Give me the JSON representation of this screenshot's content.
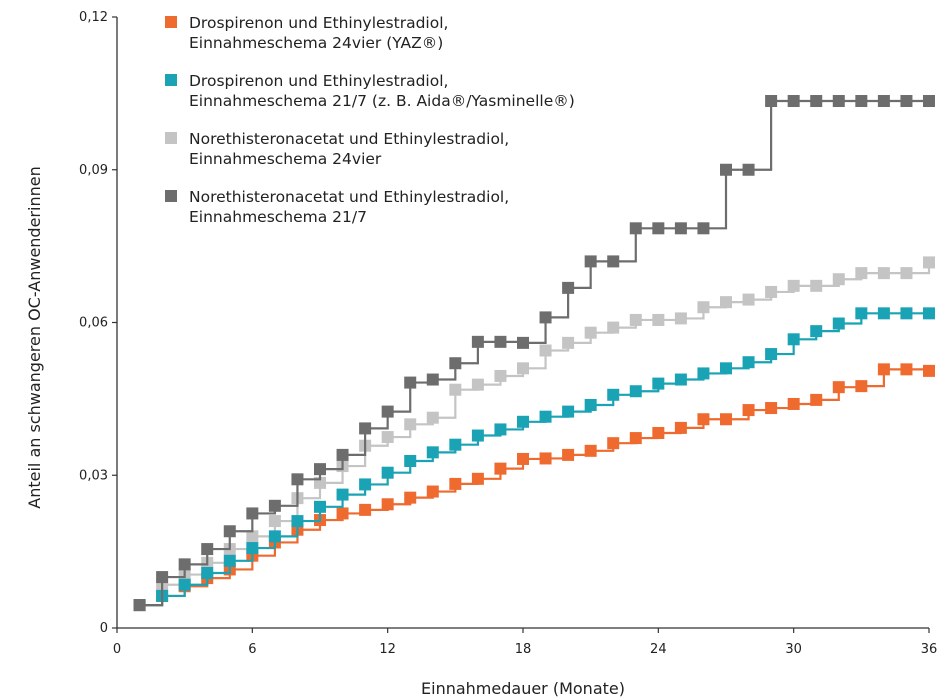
{
  "chart_data": {
    "type": "line",
    "title": "",
    "xlabel": "Einnahmedauer (Monate)",
    "ylabel": "Anteil an schwangeren OC-Anwenderinnen",
    "xlim": [
      0,
      36
    ],
    "ylim": [
      0,
      0.12
    ],
    "x_ticks": [
      "0",
      "6",
      "12",
      "18",
      "24",
      "30",
      "36"
    ],
    "y_ticks": [
      "0",
      "0,03",
      "0,06",
      "0,09",
      "0,12"
    ],
    "grid": false,
    "legend_position": "top-left",
    "series": [
      {
        "name_lines": [
          "Drospirenon und Ethinylestradiol,",
          "Einnahmeschema 24vier (YAZ®)"
        ],
        "color": "#ee6a2e",
        "x": [
          1,
          2,
          3,
          4,
          5,
          6,
          7,
          8,
          9,
          10,
          11,
          12,
          13,
          14,
          15,
          16,
          17,
          18,
          19,
          20,
          21,
          22,
          23,
          24,
          25,
          26,
          27,
          28,
          29,
          30,
          31,
          32,
          33,
          34,
          35,
          36
        ],
        "y": [
          0.0045,
          0.0063,
          0.0082,
          0.0098,
          0.0115,
          0.0142,
          0.0168,
          0.0193,
          0.0212,
          0.0225,
          0.0232,
          0.0243,
          0.0256,
          0.0268,
          0.0283,
          0.0293,
          0.0313,
          0.0332,
          0.0333,
          0.034,
          0.0348,
          0.0363,
          0.0373,
          0.0383,
          0.0393,
          0.041,
          0.041,
          0.0428,
          0.0432,
          0.044,
          0.0448,
          0.0473,
          0.0475,
          0.0508,
          0.0508,
          0.0505
        ]
      },
      {
        "name_lines": [
          "Drospirenon und Ethinylestradiol,",
          "Einnahmeschema 21/7 (z. B. Aida®/Yasminelle®)"
        ],
        "color": "#1aa3b5",
        "x": [
          1,
          2,
          3,
          4,
          5,
          6,
          7,
          8,
          9,
          10,
          11,
          12,
          13,
          14,
          15,
          16,
          17,
          18,
          19,
          20,
          21,
          22,
          23,
          24,
          25,
          26,
          27,
          28,
          29,
          30,
          31,
          32,
          33,
          34,
          35,
          36
        ],
        "y": [
          0.0045,
          0.0063,
          0.0085,
          0.0108,
          0.0132,
          0.0157,
          0.018,
          0.021,
          0.0238,
          0.0262,
          0.0282,
          0.0305,
          0.0328,
          0.0345,
          0.036,
          0.0378,
          0.039,
          0.0405,
          0.0415,
          0.0425,
          0.0438,
          0.0458,
          0.0465,
          0.048,
          0.0488,
          0.05,
          0.051,
          0.0522,
          0.0538,
          0.0567,
          0.0583,
          0.0598,
          0.0618,
          0.0618,
          0.0618,
          0.0618
        ]
      },
      {
        "name_lines": [
          "Norethisteronacetat und Ethinylestradiol,",
          "Einnahmeschema 24vier"
        ],
        "color": "#c4c4c4",
        "x": [
          1,
          2,
          3,
          4,
          5,
          6,
          7,
          8,
          9,
          10,
          11,
          12,
          13,
          14,
          15,
          16,
          17,
          18,
          19,
          20,
          21,
          22,
          23,
          24,
          25,
          26,
          27,
          28,
          29,
          30,
          31,
          32,
          33,
          34,
          35,
          36
        ],
        "y": [
          0.0045,
          0.0085,
          0.0105,
          0.0128,
          0.0155,
          0.018,
          0.021,
          0.0255,
          0.0285,
          0.0318,
          0.0358,
          0.0375,
          0.04,
          0.0413,
          0.0468,
          0.0478,
          0.0495,
          0.051,
          0.0545,
          0.056,
          0.058,
          0.059,
          0.0605,
          0.0605,
          0.0608,
          0.063,
          0.064,
          0.0645,
          0.066,
          0.0672,
          0.0672,
          0.0685,
          0.0697,
          0.0697,
          0.0697,
          0.0718
        ]
      },
      {
        "name_lines": [
          "Norethisteronacetat und Ethinylestradiol,",
          "Einnahmeschema 21/7"
        ],
        "color": "#6d6d6d",
        "x": [
          1,
          2,
          3,
          4,
          5,
          6,
          7,
          8,
          9,
          10,
          11,
          12,
          13,
          14,
          15,
          16,
          17,
          18,
          19,
          20,
          21,
          22,
          23,
          24,
          25,
          26,
          27,
          28,
          29,
          30,
          31,
          32,
          33,
          34,
          35,
          36
        ],
        "y": [
          0.0045,
          0.01,
          0.0125,
          0.0155,
          0.019,
          0.0225,
          0.024,
          0.0292,
          0.0312,
          0.034,
          0.0392,
          0.0425,
          0.0482,
          0.0488,
          0.052,
          0.0562,
          0.0562,
          0.056,
          0.061,
          0.0668,
          0.072,
          0.072,
          0.0785,
          0.0785,
          0.0785,
          0.0785,
          0.09,
          0.09,
          0.1035,
          0.1035,
          0.1035,
          0.1035,
          0.1035,
          0.1035,
          0.1035,
          0.1035
        ]
      }
    ]
  }
}
